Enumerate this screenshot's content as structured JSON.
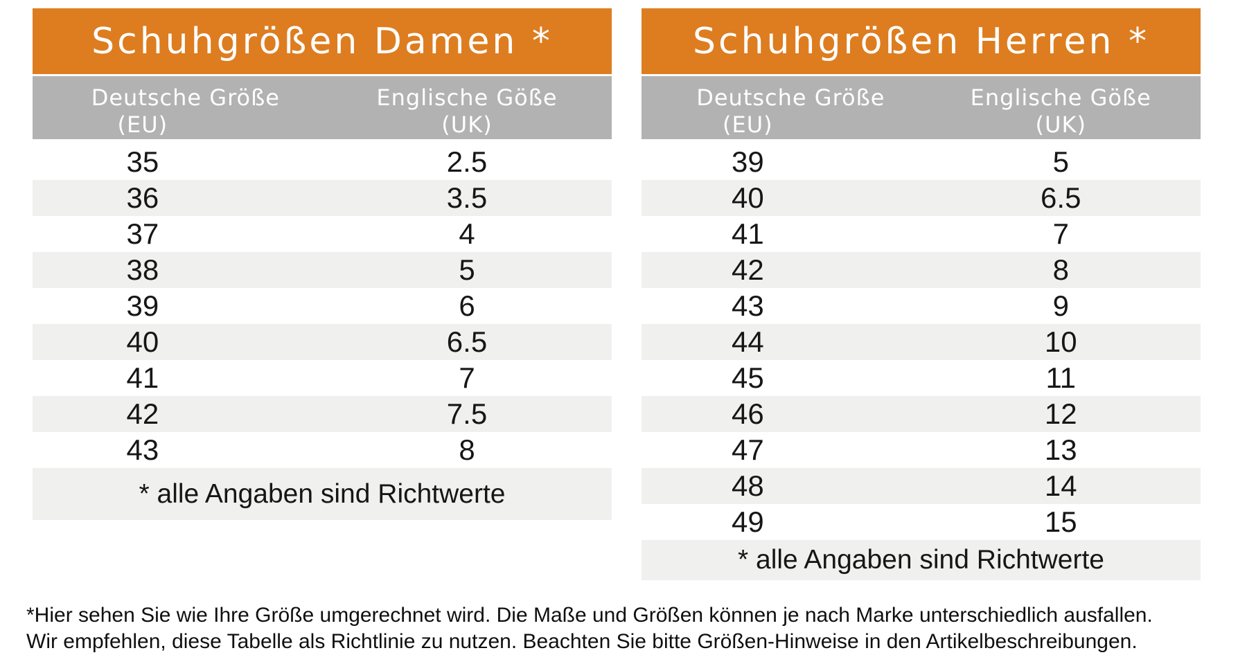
{
  "colors": {
    "accent_orange": "#DD7D20",
    "header_gray": "#B2B2B2",
    "stripe_gray": "#F0F0EF",
    "text_dark": "#161616",
    "text_white": "#FFFFFF",
    "page_bg": "#FFFFFF"
  },
  "tables": [
    {
      "title": "Schuhgrößen Damen *",
      "col1_line1": "Deutsche Größe",
      "col1_line2": "(EU)",
      "col2_line1": "Englische Göße",
      "col2_line2": "(UK)",
      "rows": [
        [
          "35",
          "2.5"
        ],
        [
          "36",
          "3.5"
        ],
        [
          "37",
          "4"
        ],
        [
          "38",
          "5"
        ],
        [
          "39",
          "6"
        ],
        [
          "40",
          "6.5"
        ],
        [
          "41",
          "7"
        ],
        [
          "42",
          "7.5"
        ],
        [
          "43",
          "8"
        ]
      ],
      "footnote": "* alle Angaben sind Richtwerte"
    },
    {
      "title": "Schuhgrößen Herren *",
      "col1_line1": "Deutsche Größe",
      "col1_line2": "(EU)",
      "col2_line1": "Englische Göße",
      "col2_line2": "(UK)",
      "rows": [
        [
          "39",
          "5"
        ],
        [
          "40",
          "6.5"
        ],
        [
          "41",
          "7"
        ],
        [
          "42",
          "8"
        ],
        [
          "43",
          "9"
        ],
        [
          "44",
          "10"
        ],
        [
          "45",
          "11"
        ],
        [
          "46",
          "12"
        ],
        [
          "47",
          "13"
        ],
        [
          "48",
          "14"
        ],
        [
          "49",
          "15"
        ]
      ],
      "footnote": "* alle Angaben sind Richtwerte"
    }
  ],
  "disclaimer": {
    "line1": "*Hier sehen Sie wie Ihre Größe umgerechnet wird. Die Maße und Größen können je nach Marke unterschiedlich ausfallen.",
    "line2": "Wir empfehlen, diese Tabelle als Richtlinie zu nutzen. Beachten Sie bitte Größen-Hinweise in den Artikelbeschreibungen."
  },
  "chart_data": [
    {
      "type": "table",
      "title": "Schuhgrößen Damen *",
      "columns": [
        "Deutsche Größe (EU)",
        "Englische Göße (UK)"
      ],
      "rows": [
        [
          35,
          2.5
        ],
        [
          36,
          3.5
        ],
        [
          37,
          4
        ],
        [
          38,
          5
        ],
        [
          39,
          6
        ],
        [
          40,
          6.5
        ],
        [
          41,
          7
        ],
        [
          42,
          7.5
        ],
        [
          43,
          8
        ]
      ],
      "footnote": "* alle Angaben sind Richtwerte"
    },
    {
      "type": "table",
      "title": "Schuhgrößen Herren *",
      "columns": [
        "Deutsche Größe (EU)",
        "Englische Göße (UK)"
      ],
      "rows": [
        [
          39,
          5
        ],
        [
          40,
          6.5
        ],
        [
          41,
          7
        ],
        [
          42,
          8
        ],
        [
          43,
          9
        ],
        [
          44,
          10
        ],
        [
          45,
          11
        ],
        [
          46,
          12
        ],
        [
          47,
          13
        ],
        [
          48,
          14
        ],
        [
          49,
          15
        ]
      ],
      "footnote": "* alle Angaben sind Richtwerte"
    }
  ]
}
